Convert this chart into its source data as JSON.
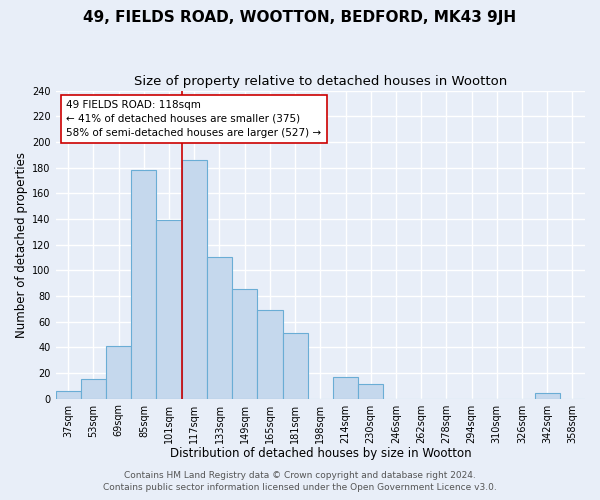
{
  "title": "49, FIELDS ROAD, WOOTTON, BEDFORD, MK43 9JH",
  "subtitle": "Size of property relative to detached houses in Wootton",
  "xlabel": "Distribution of detached houses by size in Wootton",
  "ylabel": "Number of detached properties",
  "footer_lines": [
    "Contains HM Land Registry data © Crown copyright and database right 2024.",
    "Contains public sector information licensed under the Open Government Licence v3.0."
  ],
  "bin_labels": [
    "37sqm",
    "53sqm",
    "69sqm",
    "85sqm",
    "101sqm",
    "117sqm",
    "133sqm",
    "149sqm",
    "165sqm",
    "181sqm",
    "198sqm",
    "214sqm",
    "230sqm",
    "246sqm",
    "262sqm",
    "278sqm",
    "294sqm",
    "310sqm",
    "326sqm",
    "342sqm",
    "358sqm"
  ],
  "bar_values": [
    6,
    15,
    41,
    178,
    139,
    186,
    110,
    85,
    69,
    51,
    0,
    17,
    11,
    0,
    0,
    0,
    0,
    0,
    0,
    4,
    0
  ],
  "bar_color": "#c5d8ed",
  "bar_edge_color": "#6aadd5",
  "highlight_bin_index": 5,
  "highlight_line_color": "#cc0000",
  "annotation_box_color": "#ffffff",
  "annotation_box_edge_color": "#cc0000",
  "annotation_text_line1": "49 FIELDS ROAD: 118sqm",
  "annotation_text_line2": "← 41% of detached houses are smaller (375)",
  "annotation_text_line3": "58% of semi-detached houses are larger (527) →",
  "ylim": [
    0,
    240
  ],
  "yticks": [
    0,
    20,
    40,
    60,
    80,
    100,
    120,
    140,
    160,
    180,
    200,
    220,
    240
  ],
  "background_color": "#e8eef8",
  "plot_bg_color": "#e8eef8",
  "grid_color": "#ffffff",
  "title_fontsize": 11,
  "subtitle_fontsize": 9.5,
  "tick_fontsize": 7,
  "label_fontsize": 8.5,
  "footer_fontsize": 6.5
}
